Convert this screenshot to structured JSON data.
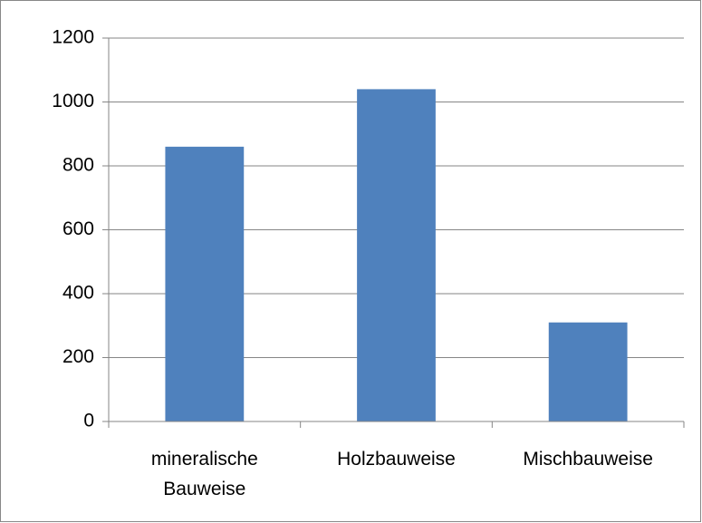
{
  "chart_data": {
    "type": "bar",
    "categories": [
      "mineralische Bauweise",
      "Holzbauweise",
      "Mischbauweise"
    ],
    "values": [
      860,
      1040,
      310
    ],
    "color": "#4f81bd",
    "ylim": [
      0,
      1200
    ],
    "yticks": [
      0,
      200,
      400,
      600,
      800,
      1000,
      1200
    ],
    "grid": true
  }
}
